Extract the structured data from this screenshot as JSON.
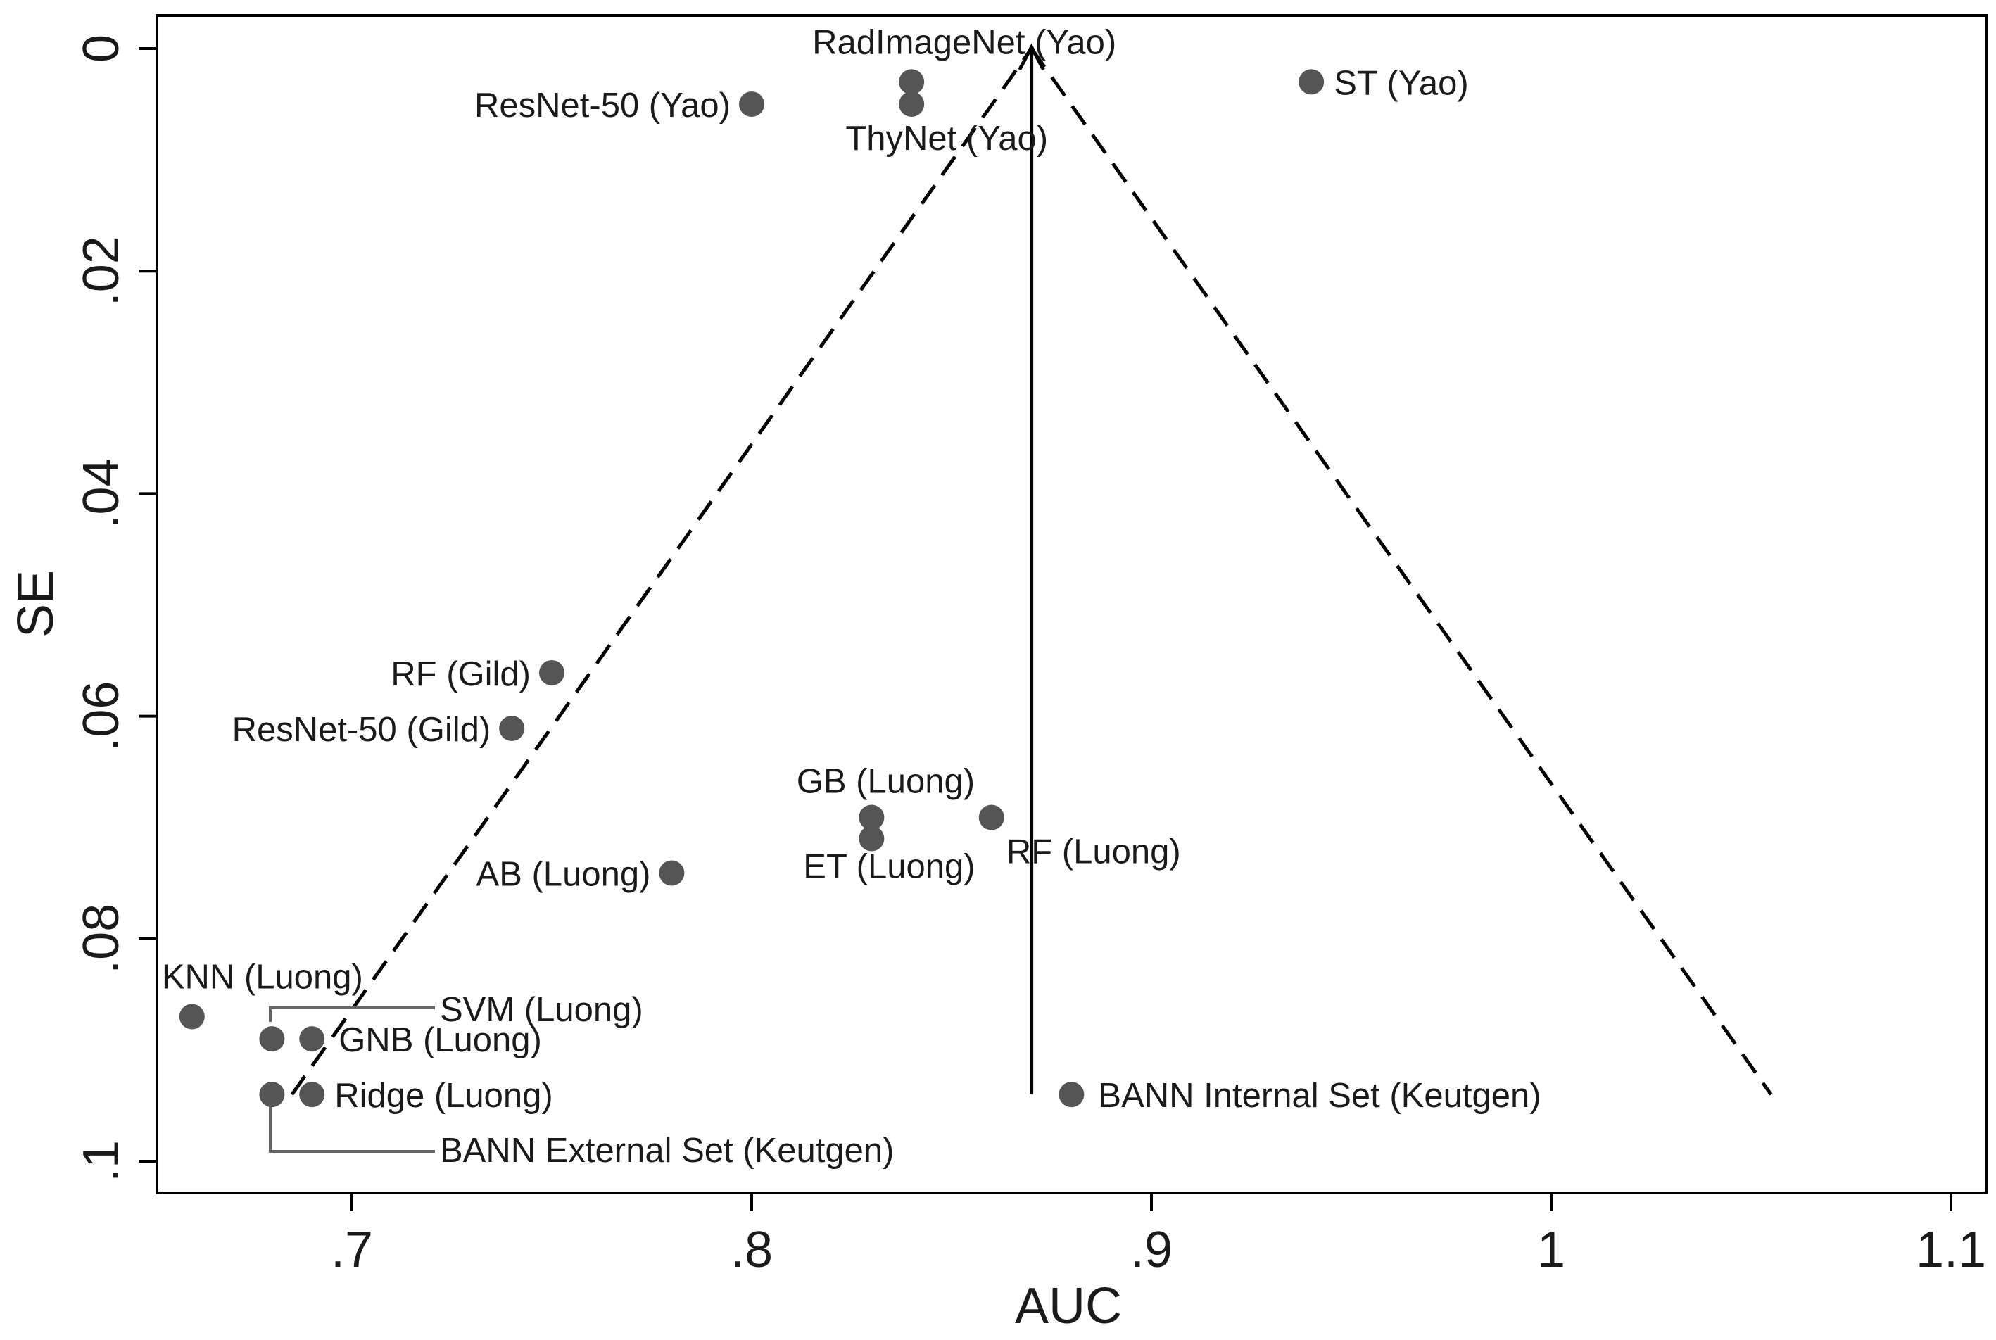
{
  "chart_data": {
    "type": "scatter",
    "title": "",
    "xlabel": "AUC",
    "ylabel": "SE",
    "xlim": [
      0.65,
      1.1
    ],
    "ylim": [
      0,
      0.103
    ],
    "y_inverted": true,
    "grid": false,
    "x_ticks": [
      {
        "value": 0.7,
        "label": ".7"
      },
      {
        "value": 0.8,
        "label": ".8"
      },
      {
        "value": 0.9,
        "label": ".9"
      },
      {
        "value": 1.0,
        "label": "1"
      },
      {
        "value": 1.1,
        "label": "1.1"
      }
    ],
    "y_ticks": [
      {
        "value": 0,
        "label": "0"
      },
      {
        "value": 0.02,
        "label": ".02"
      },
      {
        "value": 0.04,
        "label": ".04"
      },
      {
        "value": 0.06,
        "label": ".06"
      },
      {
        "value": 0.08,
        "label": ".08"
      },
      {
        "value": 0.1,
        "label": ".1"
      }
    ],
    "pooled_estimate": {
      "auc": 0.87,
      "se_top": 0,
      "se_bottom": 0.094
    },
    "funnel": {
      "apex": [
        0.87,
        0
      ],
      "left_base": [
        0.685,
        0.094
      ],
      "right_base": [
        1.055,
        0.094
      ]
    },
    "points": [
      {
        "label": "RadImageNet (Yao)",
        "auc": 0.84,
        "se": 0.003
      },
      {
        "label": "ThyNet (Yao)",
        "auc": 0.84,
        "se": 0.005
      },
      {
        "label": "ResNet-50 (Yao)",
        "auc": 0.8,
        "se": 0.005
      },
      {
        "label": "ST (Yao)",
        "auc": 0.94,
        "se": 0.003
      },
      {
        "label": "RF (Gild)",
        "auc": 0.75,
        "se": 0.0561
      },
      {
        "label": "ResNet-50 (Gild)",
        "auc": 0.74,
        "se": 0.0611
      },
      {
        "label": "GB (Luong)",
        "auc": 0.83,
        "se": 0.0691
      },
      {
        "label": "ET (Luong)",
        "auc": 0.83,
        "se": 0.071
      },
      {
        "label": "RF (Luong)",
        "auc": 0.86,
        "se": 0.0691
      },
      {
        "label": "AB (Luong)",
        "auc": 0.78,
        "se": 0.0741
      },
      {
        "label": "KNN (Luong)",
        "auc": 0.66,
        "se": 0.087
      },
      {
        "label": "SVM (Luong)",
        "auc": 0.68,
        "se": 0.089
      },
      {
        "label": "GNB (Luong)",
        "auc": 0.69,
        "se": 0.089
      },
      {
        "label": "Ridge (Luong)",
        "auc": 0.69,
        "se": 0.094
      },
      {
        "label": "BANN External Set (Keutgen)",
        "auc": 0.68,
        "se": 0.094
      },
      {
        "label": "BANN Internal Set (Keutgen)",
        "auc": 0.88,
        "se": 0.094
      }
    ]
  }
}
